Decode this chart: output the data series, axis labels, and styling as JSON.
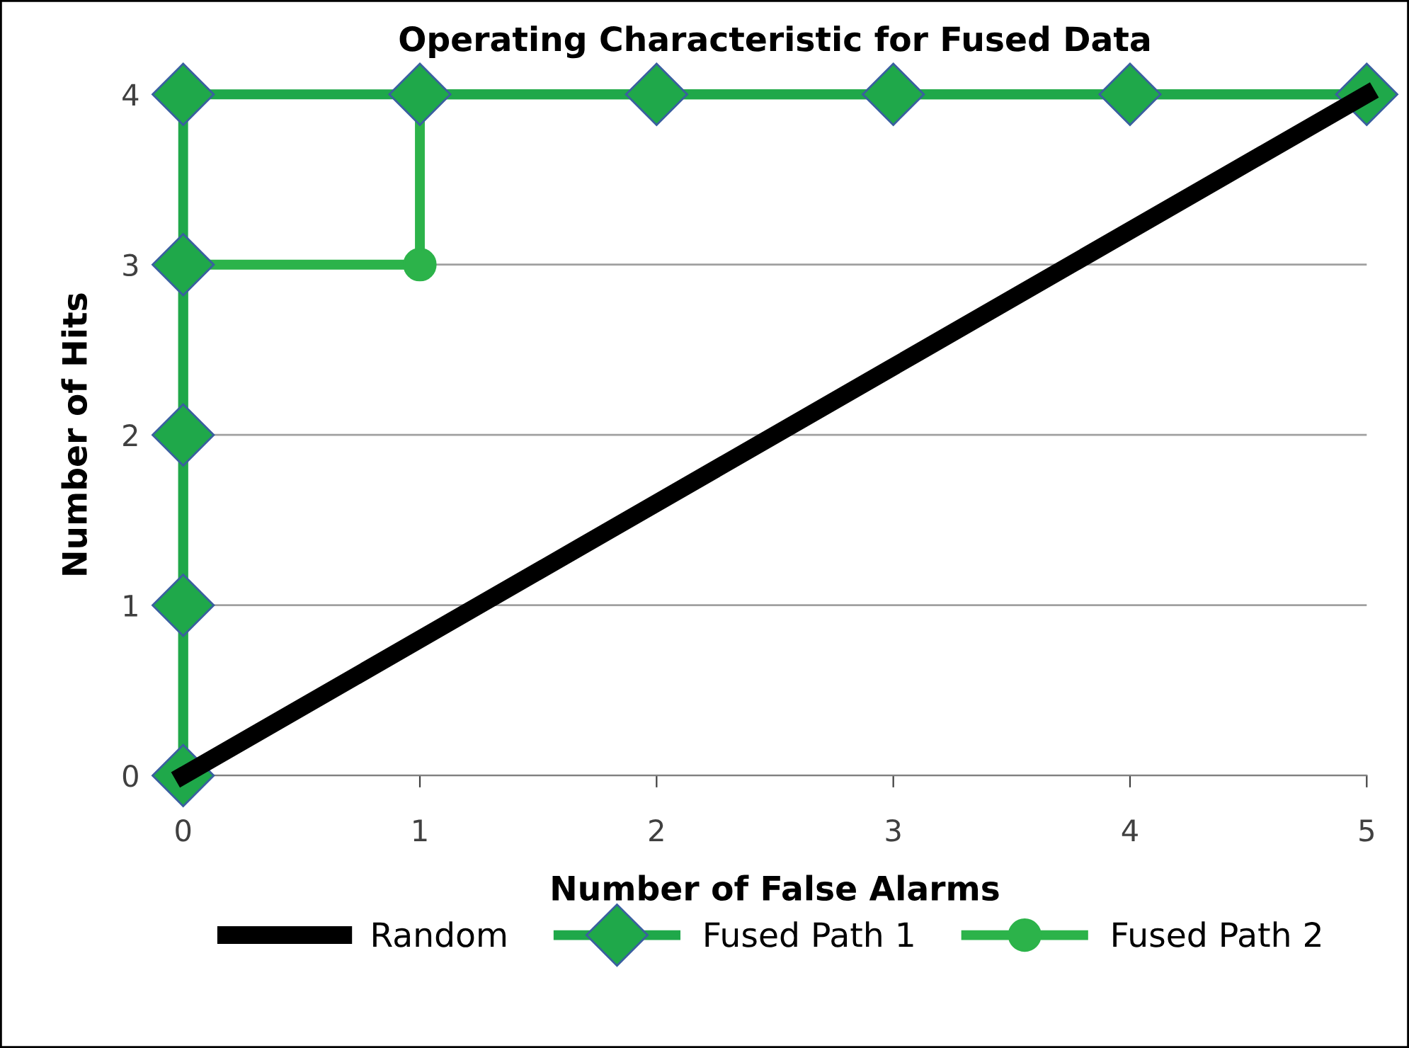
{
  "chart_data": {
    "type": "line",
    "title": "Operating Characteristic for Fused Data",
    "xlabel": "Number of False Alarms",
    "ylabel": "Number of Hits",
    "xlim": [
      0,
      5
    ],
    "ylim": [
      0,
      4
    ],
    "xticks": [
      0,
      1,
      2,
      3,
      4,
      5
    ],
    "yticks": [
      0,
      1,
      2,
      3,
      4
    ],
    "grid": "y",
    "legend": "bottom",
    "series": [
      {
        "name": "Random",
        "color": "#000000",
        "marker": "none",
        "x": [
          0,
          5
        ],
        "values": [
          0,
          4
        ]
      },
      {
        "name": "Fused Path 1",
        "color": "#1fa84a",
        "marker": "diamond",
        "x": [
          0,
          0,
          0,
          0,
          0,
          1,
          2,
          3,
          4,
          5
        ],
        "values": [
          0,
          1,
          2,
          3,
          4,
          4,
          4,
          4,
          4,
          4
        ]
      },
      {
        "name": "Fused Path 2",
        "color": "#2cb34a",
        "marker": "circle",
        "x": [
          0,
          0,
          1,
          1,
          5
        ],
        "values": [
          0,
          3,
          3,
          4,
          4
        ]
      }
    ]
  }
}
